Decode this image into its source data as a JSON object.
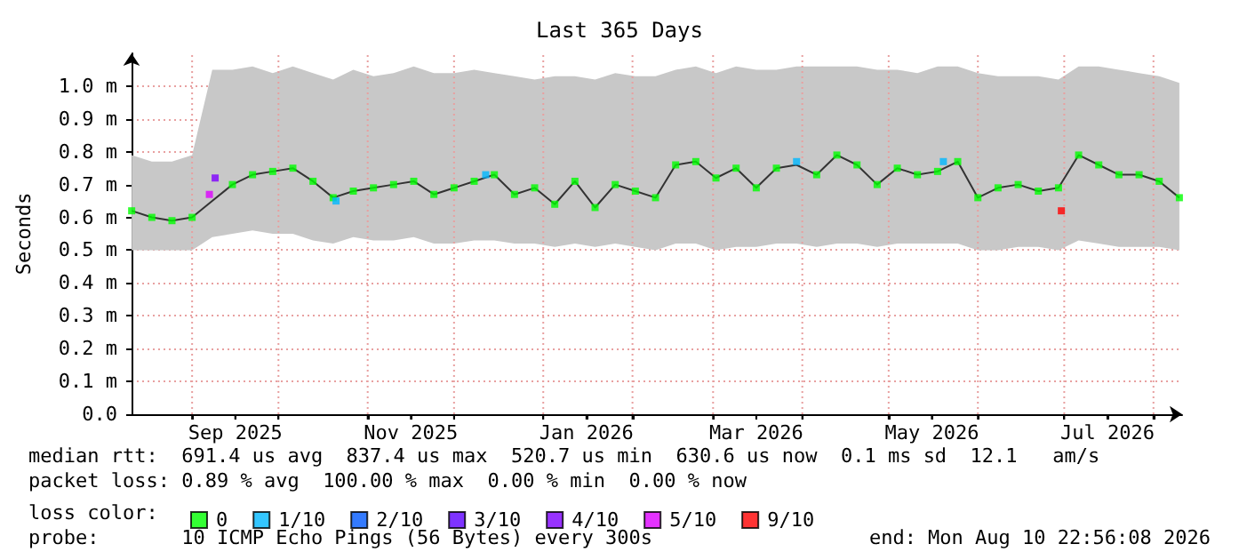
{
  "chart_data": {
    "type": "line",
    "title": "Last 365 Days",
    "ylabel": "Seconds",
    "xlim": [
      "2025-08-10T22:56",
      "2026-08-10T22:56"
    ],
    "xticks": [
      {
        "value": "2025-09-01",
        "label": null
      },
      {
        "value": "2025-09-16",
        "label": "Sep 2025"
      },
      {
        "value": "2025-10-01",
        "label": null
      },
      {
        "value": "2025-11-01",
        "label": null
      },
      {
        "value": "2025-11-16",
        "label": "Nov 2025"
      },
      {
        "value": "2025-12-01",
        "label": null
      },
      {
        "value": "2026-01-01",
        "label": null
      },
      {
        "value": "2026-01-16",
        "label": "Jan 2026"
      },
      {
        "value": "2026-02-01",
        "label": null
      },
      {
        "value": "2026-03-01",
        "label": null
      },
      {
        "value": "2026-03-16",
        "label": "Mar 2026"
      },
      {
        "value": "2026-04-01",
        "label": null
      },
      {
        "value": "2026-05-01",
        "label": null
      },
      {
        "value": "2026-05-16",
        "label": "May 2026"
      },
      {
        "value": "2026-06-01",
        "label": null
      },
      {
        "value": "2026-07-01",
        "label": null
      },
      {
        "value": "2026-07-16",
        "label": "Jul 2026"
      },
      {
        "value": "2026-08-01",
        "label": null
      }
    ],
    "ylim": [
      0,
      1.1
    ],
    "yticks": [
      {
        "value": 0,
        "label": "0.0"
      },
      {
        "value": 0.1,
        "label": "0.1 m"
      },
      {
        "value": 0.2,
        "label": "0.2 m"
      },
      {
        "value": 0.3,
        "label": "0.3 m"
      },
      {
        "value": 0.4,
        "label": "0.4 m"
      },
      {
        "value": 0.5,
        "label": "0.5 m"
      },
      {
        "value": 0.6,
        "label": "0.6 m"
      },
      {
        "value": 0.7,
        "label": "0.7 m"
      },
      {
        "value": 0.8,
        "label": "0.8 m"
      },
      {
        "value": 0.9,
        "label": "0.9 m"
      },
      {
        "value": 1,
        "label": "1.0 m"
      }
    ],
    "grid": true,
    "legend": "bottom left",
    "legend_title": "loss color:",
    "x": [
      "2025-08-11",
      "2025-08-18",
      "2025-08-25",
      "2025-09-01",
      "2025-09-08",
      "2025-09-15",
      "2025-09-22",
      "2025-09-29",
      "2025-10-06",
      "2025-10-13",
      "2025-10-20",
      "2025-10-27",
      "2025-11-03",
      "2025-11-10",
      "2025-11-17",
      "2025-11-24",
      "2025-12-01",
      "2025-12-08",
      "2025-12-15",
      "2025-12-22",
      "2025-12-29",
      "2026-01-05",
      "2026-01-12",
      "2026-01-19",
      "2026-01-26",
      "2026-02-02",
      "2026-02-09",
      "2026-02-16",
      "2026-02-23",
      "2026-03-02",
      "2026-03-09",
      "2026-03-16",
      "2026-03-23",
      "2026-03-30",
      "2026-04-06",
      "2026-04-13",
      "2026-04-20",
      "2026-04-27",
      "2026-05-04",
      "2026-05-11",
      "2026-05-18",
      "2026-05-25",
      "2026-06-01",
      "2026-06-08",
      "2026-06-15",
      "2026-06-22",
      "2026-06-29",
      "2026-07-06",
      "2026-07-13",
      "2026-07-20",
      "2026-07-27",
      "2026-08-03",
      "2026-08-10"
    ],
    "series": [
      {
        "type": "line",
        "color": "#333333",
        "marker": "none",
        "values": [
          0.62,
          0.6,
          0.59,
          0.6,
          0.65,
          0.7,
          0.73,
          0.74,
          0.75,
          0.71,
          0.66,
          0.68,
          0.69,
          0.7,
          0.71,
          0.67,
          0.69,
          0.71,
          0.73,
          0.67,
          0.69,
          0.64,
          0.71,
          0.63,
          0.7,
          0.68,
          0.66,
          0.76,
          0.77,
          0.72,
          0.75,
          0.69,
          0.75,
          0.76,
          0.73,
          0.79,
          0.76,
          0.7,
          0.75,
          0.73,
          0.74,
          0.77,
          0.66,
          0.69,
          0.7,
          0.68,
          0.69,
          0.79,
          0.76,
          0.73,
          0.73,
          0.71,
          0.66
        ],
        "lower": [
          0.5,
          0.5,
          0.5,
          0.5,
          0.54,
          0.55,
          0.56,
          0.55,
          0.55,
          0.53,
          0.52,
          0.54,
          0.53,
          0.53,
          0.54,
          0.52,
          0.52,
          0.53,
          0.53,
          0.52,
          0.52,
          0.51,
          0.52,
          0.51,
          0.52,
          0.51,
          0.5,
          0.52,
          0.52,
          0.5,
          0.51,
          0.51,
          0.52,
          0.52,
          0.51,
          0.52,
          0.52,
          0.51,
          0.52,
          0.52,
          0.52,
          0.52,
          0.5,
          0.5,
          0.51,
          0.51,
          0.5,
          0.53,
          0.52,
          0.51,
          0.51,
          0.51,
          0.5
        ],
        "upper": [
          0.79,
          0.77,
          0.77,
          0.79,
          1.05,
          1.05,
          1.06,
          1.04,
          1.06,
          1.04,
          1.02,
          1.05,
          1.03,
          1.04,
          1.06,
          1.04,
          1.04,
          1.05,
          1.04,
          1.03,
          1.02,
          1.03,
          1.03,
          1.02,
          1.04,
          1.03,
          1.03,
          1.05,
          1.06,
          1.04,
          1.06,
          1.05,
          1.05,
          1.06,
          1.06,
          1.06,
          1.06,
          1.05,
          1.05,
          1.04,
          1.06,
          1.06,
          1.04,
          1.03,
          1.03,
          1.03,
          1.02,
          1.06,
          1.06,
          1.05,
          1.04,
          1.03,
          1.01
        ]
      },
      {
        "type": "scatter",
        "name": "0",
        "color": "#00ff00",
        "marker": "square",
        "values": [
          0.62,
          0.6,
          0.59,
          0.6,
          null,
          0.7,
          0.73,
          0.74,
          0.75,
          0.71,
          0.66,
          0.68,
          0.69,
          0.7,
          0.71,
          0.67,
          0.69,
          0.71,
          0.73,
          0.67,
          0.69,
          0.64,
          0.71,
          0.63,
          0.7,
          0.68,
          0.66,
          0.76,
          0.77,
          0.72,
          0.75,
          0.69,
          0.75,
          null,
          0.73,
          0.79,
          0.76,
          0.7,
          0.75,
          0.73,
          0.74,
          0.77,
          0.66,
          0.69,
          0.7,
          0.68,
          0.69,
          0.79,
          0.76,
          0.73,
          0.73,
          0.71,
          0.66
        ]
      },
      {
        "type": "scatter",
        "name": "1/10",
        "color": "#00b8ff",
        "marker": "square",
        "x": [
          "2025-10-21",
          "2025-12-12",
          "2026-03-30",
          "2026-05-20"
        ],
        "values": [
          0.65,
          0.73,
          0.77,
          0.77
        ]
      },
      {
        "type": "scatter",
        "name": "2/10",
        "color": "#0059ff",
        "marker": "square",
        "values": [
          null,
          null,
          null,
          null,
          null,
          null,
          null,
          null,
          null,
          null,
          null,
          null,
          null,
          null,
          null,
          null,
          null,
          null,
          null,
          null,
          null,
          null,
          null,
          null,
          null,
          null,
          null,
          null,
          null,
          null,
          null,
          null,
          null,
          null,
          null,
          null,
          null,
          null,
          null,
          null,
          null,
          null,
          null,
          null,
          null,
          null,
          null,
          null,
          null,
          null,
          null,
          null,
          null
        ]
      },
      {
        "type": "scatter",
        "name": "3/10",
        "color": "#5e00ff",
        "marker": "square",
        "values": [
          null,
          null,
          null,
          null,
          null,
          null,
          null,
          null,
          null,
          null,
          null,
          null,
          null,
          null,
          null,
          null,
          null,
          null,
          null,
          null,
          null,
          null,
          null,
          null,
          null,
          null,
          null,
          null,
          null,
          null,
          null,
          null,
          null,
          null,
          null,
          null,
          null,
          null,
          null,
          null,
          null,
          null,
          null,
          null,
          null,
          null,
          null,
          null,
          null,
          null,
          null,
          null,
          null
        ]
      },
      {
        "type": "scatter",
        "name": "4/10",
        "color": "#7e00ff",
        "marker": "square",
        "x": [
          "2025-09-09"
        ],
        "values": [
          0.72
        ]
      },
      {
        "type": "scatter",
        "name": "5/10",
        "color": "#dd00ff",
        "marker": "square",
        "x": [
          "2025-09-07"
        ],
        "values": [
          0.67
        ]
      },
      {
        "type": "scatter",
        "name": "9/10",
        "color": "#ff0000",
        "marker": "square",
        "x": [
          "2026-06-30"
        ],
        "values": [
          0.62
        ]
      }
    ],
    "annotations": [
      "median rtt:  691.4 us avg  837.4 us max  520.7 us min  630.6 us now  0.1 ms sd  12.1   am/s",
      "packet loss: 0.89 % avg  100.00 % max  0.00 % min  0.00 % now",
      "probe:       10 ICMP Echo Pings (56 Bytes) every 300s",
      "end: Mon Aug 10 22:56:08 2026"
    ]
  }
}
